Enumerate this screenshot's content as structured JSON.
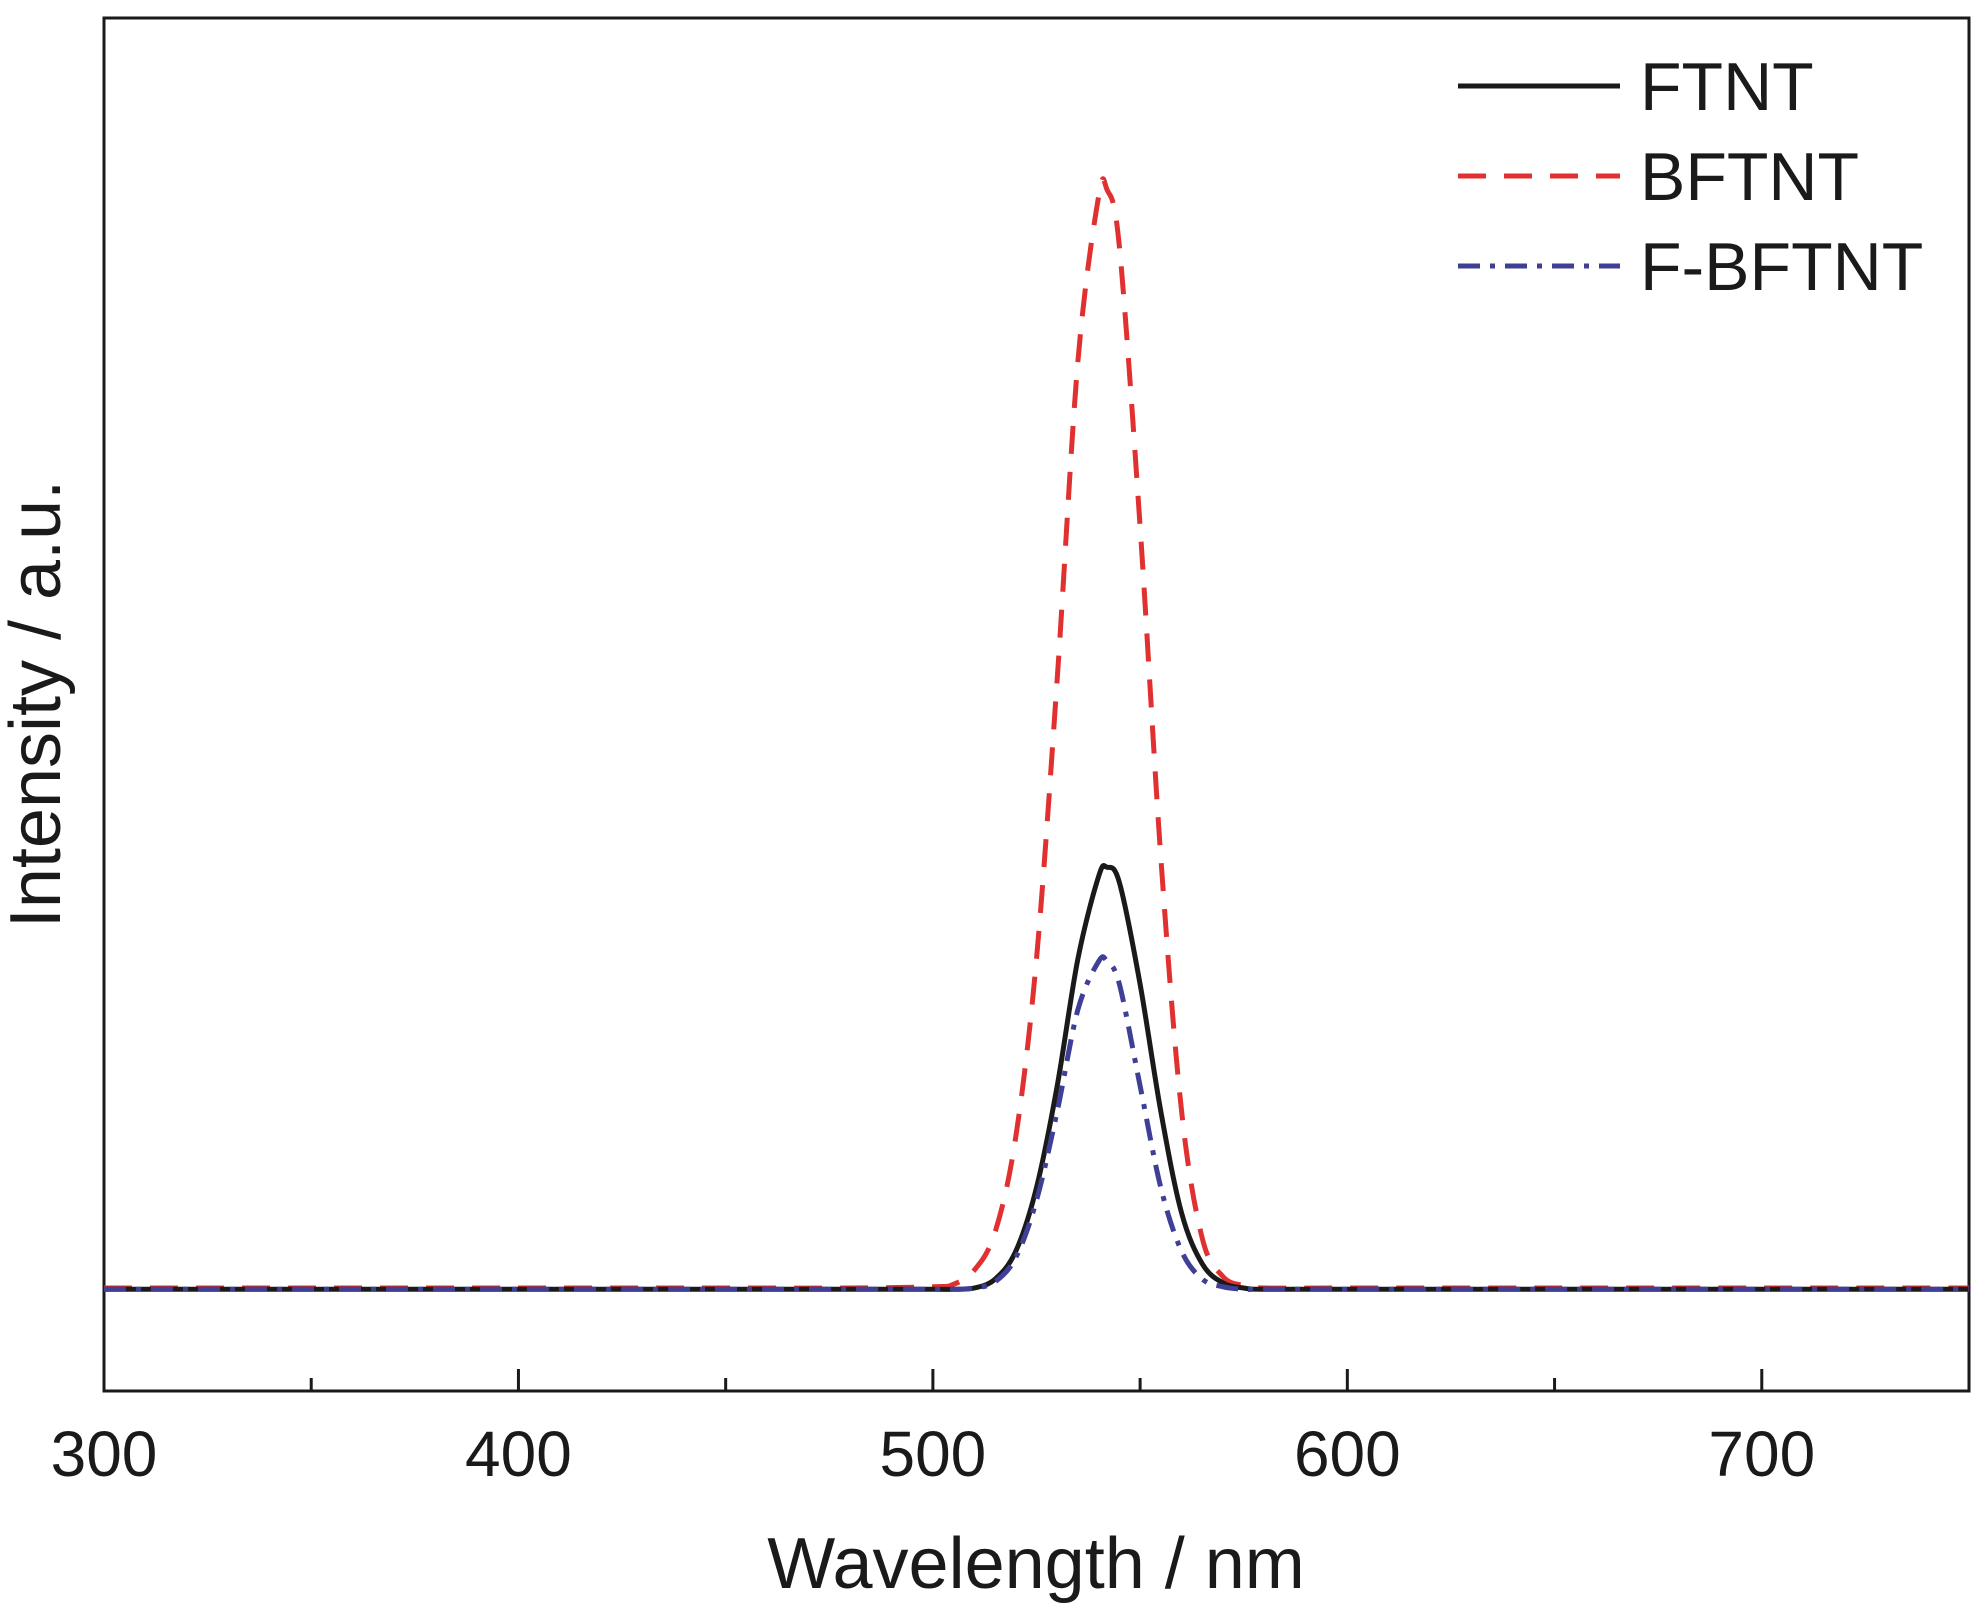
{
  "chart_data": {
    "type": "line",
    "title": "",
    "xlabel": "Wavelength / nm",
    "ylabel": "Intensity / a.u.",
    "xlim": [
      300,
      750
    ],
    "ylim": [
      -0.08,
      1.0
    ],
    "x_ticks": [
      300,
      400,
      500,
      600,
      700
    ],
    "x_minor_ticks": [
      350,
      450,
      550,
      650
    ],
    "y_ticks_shown": false,
    "grid": false,
    "legend_position": "top-right",
    "series": [
      {
        "name": "FTNT",
        "color": "#1a1a1a",
        "line_style": "solid",
        "x": [
          300,
          350,
          400,
          450,
          480,
          500,
          505,
          510,
          515,
          520,
          525,
          530,
          535,
          540,
          542,
          545,
          550,
          555,
          560,
          565,
          570,
          575,
          580,
          600,
          650,
          700,
          750
        ],
        "y": [
          0.0,
          0.0,
          0.0,
          0.0,
          0.0,
          0.0,
          0.0,
          0.001,
          0.008,
          0.03,
          0.08,
          0.16,
          0.26,
          0.325,
          0.332,
          0.32,
          0.24,
          0.14,
          0.06,
          0.02,
          0.005,
          0.001,
          0.0,
          0.0,
          0.0,
          0.0,
          0.0
        ]
      },
      {
        "name": "BFTNT",
        "color": "#e03030",
        "line_style": "dashed",
        "x": [
          300,
          350,
          400,
          450,
          480,
          500,
          505,
          510,
          515,
          520,
          525,
          530,
          535,
          540,
          542,
          545,
          550,
          555,
          560,
          565,
          570,
          575,
          580,
          600,
          650,
          700,
          750
        ],
        "y": [
          0.001,
          0.001,
          0.001,
          0.001,
          0.001,
          0.002,
          0.004,
          0.015,
          0.045,
          0.12,
          0.26,
          0.48,
          0.73,
          0.86,
          0.865,
          0.82,
          0.6,
          0.34,
          0.14,
          0.04,
          0.01,
          0.003,
          0.001,
          0.001,
          0.001,
          0.001,
          0.001
        ]
      },
      {
        "name": "F-BFTNT",
        "color": "#3f3f96",
        "line_style": "dashdot",
        "x": [
          300,
          350,
          400,
          450,
          480,
          500,
          505,
          510,
          515,
          520,
          525,
          530,
          535,
          540,
          542,
          545,
          550,
          555,
          560,
          565,
          570,
          575,
          580,
          600,
          650,
          700,
          750
        ],
        "y": [
          0.0,
          0.0,
          0.0,
          0.0,
          0.0,
          0.0,
          0.0,
          0.001,
          0.006,
          0.025,
          0.07,
          0.14,
          0.22,
          0.258,
          0.258,
          0.24,
          0.16,
          0.08,
          0.03,
          0.008,
          0.002,
          0.0,
          0.0,
          0.0,
          0.0,
          0.0,
          0.0
        ]
      }
    ]
  }
}
